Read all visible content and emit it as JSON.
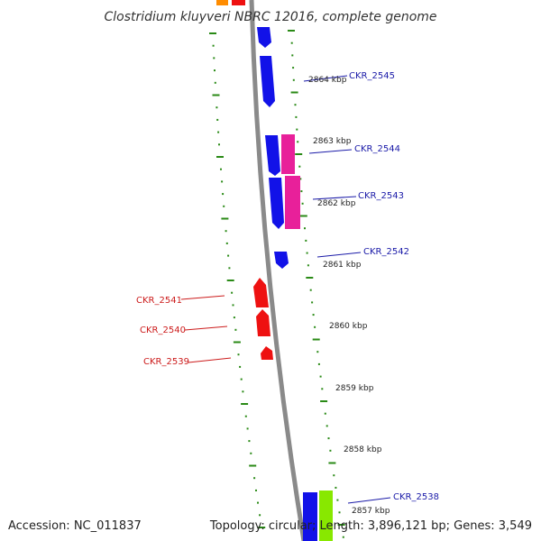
{
  "title": "Clostridium kluyveri NBRC 12016, complete genome",
  "footer": {
    "accession": "Accession: NC_011837",
    "summary": "Topology: circular; Length: 3,896,121 bp; Genes: 3,549"
  },
  "scale_labels": [
    "2864 kbp",
    "2863 kbp",
    "2862 kbp",
    "2861 kbp",
    "2860 kbp",
    "2859 kbp",
    "2858 kbp",
    "2857 kbp"
  ],
  "genes_forward": [
    "CKR_2545",
    "CKR_2544",
    "CKR_2543",
    "CKR_2542",
    "CKR_2538"
  ],
  "genes_reverse": [
    "CKR_2541",
    "CKR_2540",
    "CKR_2539"
  ],
  "colors": {
    "blue_gene": "#1212e8",
    "pink_gene": "#e8209a",
    "red_gene": "#ee1111",
    "green_gene": "#88e800",
    "orange_gene": "#ff8c00",
    "tick_green": "#2a8a16",
    "backbone": "#8a8a8a",
    "label_blue": "#1a1aa8",
    "label_red": "#cc1b1b"
  }
}
